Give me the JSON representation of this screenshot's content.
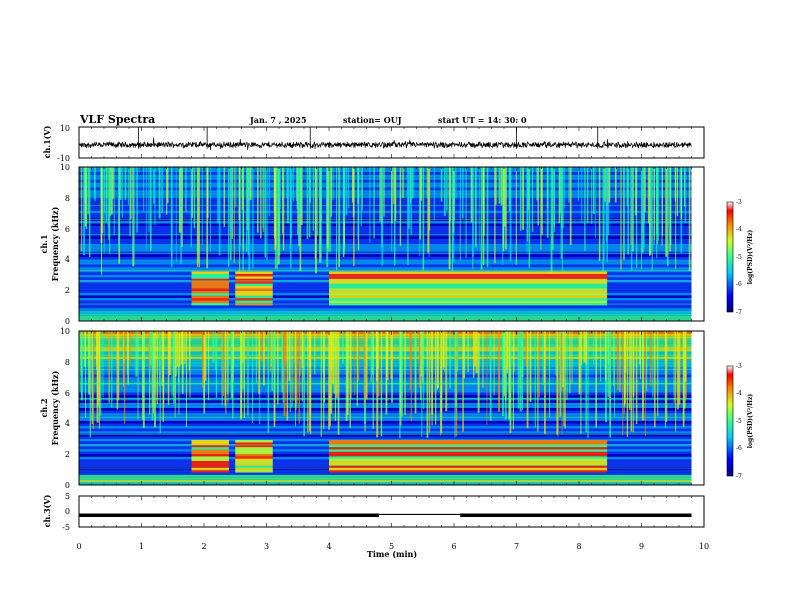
{
  "header": {
    "title": "VLF Spectra",
    "date": "Jan. 7 , 2025",
    "station": "station= OUJ",
    "start_time": "start UT =  14: 30: 0"
  },
  "chart_data": {
    "type": "heatmap",
    "x": {
      "label": "Time (min)",
      "range": [
        0,
        10
      ],
      "ticks": [
        "0",
        "1",
        "2",
        "3",
        "4",
        "5",
        "6",
        "7",
        "8",
        "9",
        "10"
      ]
    },
    "panels": [
      {
        "id": "waveform-ch1",
        "ylabel": "ch.1(V)",
        "ylim": [
          -10,
          10
        ],
        "yticks": [
          "10",
          "-10"
        ],
        "kind": "waveform"
      },
      {
        "id": "spectrogram-ch1",
        "ylabel_line1": "ch.1",
        "ylabel_line2": "Frequency (kHz)",
        "ylim": [
          0,
          10
        ],
        "yticks": [
          "0",
          "2",
          "4",
          "6",
          "8",
          "10"
        ],
        "data_end_min": 9.8,
        "enhanced_band_intervals_min": [
          [
            1.8,
            2.4
          ],
          [
            2.5,
            3.1
          ],
          [
            4.0,
            8.45
          ]
        ],
        "enhanced_band_khz": [
          1.0,
          3.2
        ],
        "kind": "spectrogram"
      },
      {
        "id": "spectrogram-ch2",
        "ylabel_line1": "ch.2",
        "ylabel_line2": "Frequency (kHz)",
        "ylim": [
          0,
          10
        ],
        "yticks": [
          "0",
          "2",
          "4",
          "6",
          "8",
          "10"
        ],
        "data_end_min": 9.8,
        "enhanced_band_intervals_min": [
          [
            1.8,
            2.4
          ],
          [
            2.5,
            3.1
          ],
          [
            4.0,
            8.45
          ]
        ],
        "enhanced_band_khz": [
          0.8,
          2.9
        ],
        "kind": "spectrogram"
      },
      {
        "id": "level-ch3",
        "ylabel": "ch.3(V)",
        "ylim": [
          -5,
          5
        ],
        "yticks": [
          "5",
          "0",
          "-5"
        ],
        "level_v": -1.2,
        "dropout_interval_min": [
          4.8,
          6.1
        ],
        "kind": "level"
      }
    ],
    "colorbar": {
      "label": "log(PSD)(V²/Hz)",
      "range": [
        -7,
        -3
      ],
      "ticks": [
        "-3",
        "-4",
        "-5",
        "-6",
        "-7"
      ]
    }
  }
}
